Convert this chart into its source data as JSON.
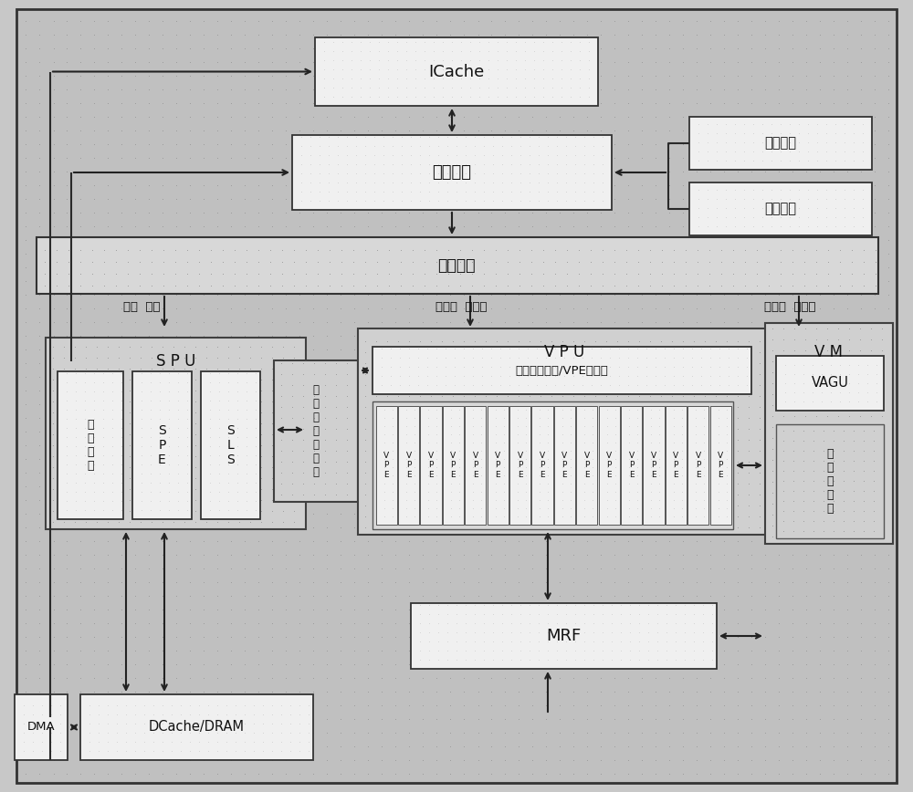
{
  "bg": "#c8c8c8",
  "white": "#ffffff",
  "light_grey": "#e0e0e0",
  "mid_grey": "#d0d0d0",
  "edge_dark": "#2a2a2a",
  "edge_mid": "#555555",
  "text_col": "#111111",
  "icache": "ICache",
  "fetch": "取指单元",
  "dispatch": "指令派发",
  "interrupt": "中断控制",
  "loop_ctrl": "循环控制",
  "spu": "S P U",
  "instr_flow": "指\n令\n流\n控",
  "spe": "S\nP\nE",
  "sls": "S\nL\nS",
  "global_reg": "全\n局\n共\n享\n寄\n存\n器",
  "vpu": "V P U",
  "vpu_tree": "多宽度归约树/VPE间混洗",
  "vpe_text": "V\nP\nE",
  "num_vpes": 16,
  "mrf": "MRF",
  "vm": "V M",
  "vagu": "VAGU",
  "vmem": "向\n量\n存\n储\n体",
  "dcache": "DCache/DRAM",
  "dma": "DMA",
  "scalar_lbl": "标量  指令",
  "vec_arith_lbl": "向量运  算指令",
  "vec_mem_lbl": "向量访  存指令"
}
